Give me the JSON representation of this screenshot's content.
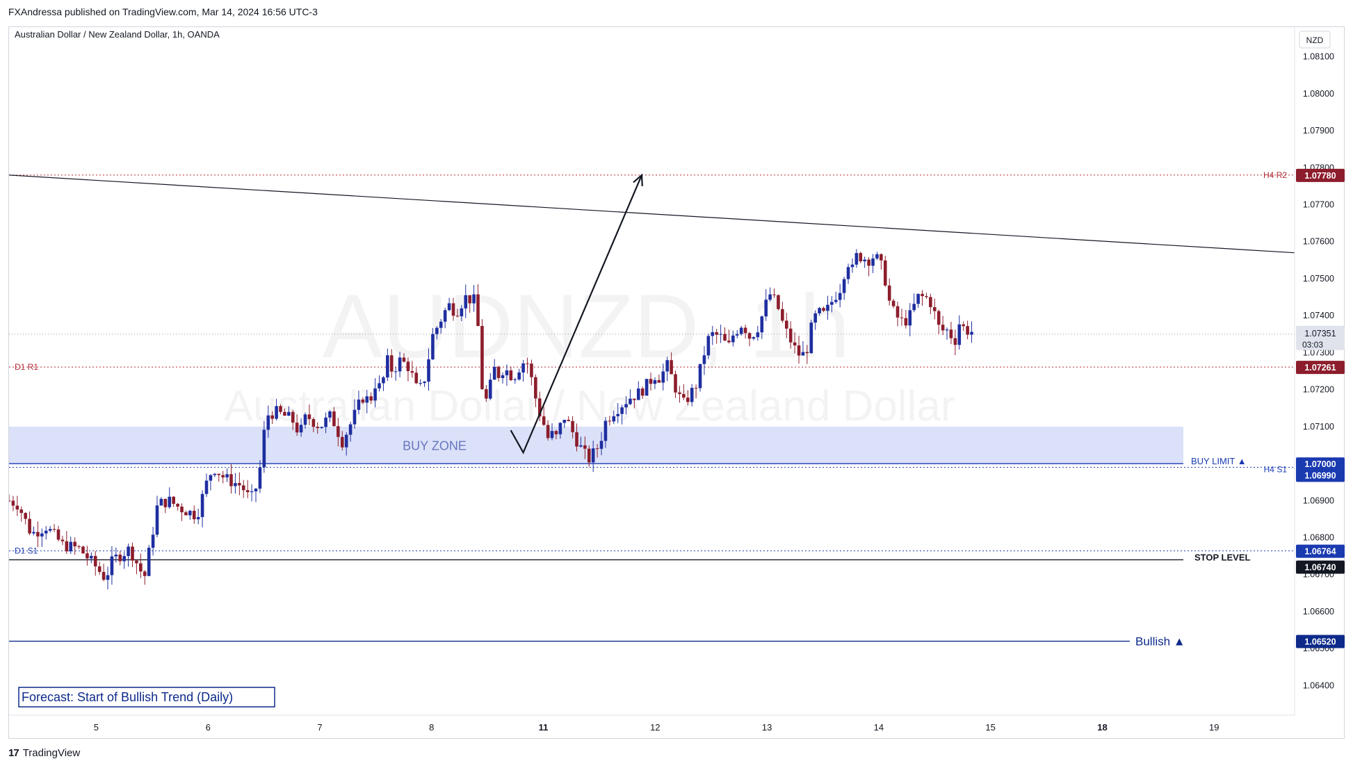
{
  "header": {
    "publish_line": "FXAndressa published on TradingView.com, Mar 14, 2024 16:56 UTC-3"
  },
  "footer": {
    "brand": "TradingView"
  },
  "chart_data": {
    "type": "candlestick",
    "symbol_line": "Australian Dollar / New Zealand Dollar, 1h, OANDA",
    "watermark_symbol": "AUDNZD, 1h",
    "watermark_name": "Australian Dollar / New Zealand Dollar",
    "currency": "NZD",
    "ylim": [
      1.0632,
      1.0818
    ],
    "y_ticks": [
      "1.08100",
      "1.08000",
      "1.07900",
      "1.07800",
      "1.07700",
      "1.07600",
      "1.07500",
      "1.07400",
      "1.07300",
      "1.07200",
      "1.07100",
      "1.07000",
      "1.06900",
      "1.06800",
      "1.06700",
      "1.06600",
      "1.06500",
      "1.06400"
    ],
    "x_ticks": [
      {
        "label": "5",
        "x": 5,
        "bold": false
      },
      {
        "label": "6",
        "x": 6,
        "bold": false
      },
      {
        "label": "7",
        "x": 7,
        "bold": false
      },
      {
        "label": "8",
        "x": 8,
        "bold": false
      },
      {
        "label": "11",
        "x": 9,
        "bold": true
      },
      {
        "label": "12",
        "x": 10,
        "bold": false
      },
      {
        "label": "13",
        "x": 11,
        "bold": false
      },
      {
        "label": "14",
        "x": 12,
        "bold": false
      },
      {
        "label": "15",
        "x": 13,
        "bold": false
      },
      {
        "label": "18",
        "x": 14,
        "bold": true
      },
      {
        "label": "19",
        "x": 15,
        "bold": false
      }
    ],
    "xlim": [
      4.22,
      15.72
    ],
    "colors": {
      "up": "#1e2ea0",
      "down": "#8c1d2c",
      "buy_zone": "#dbe1f8",
      "zone_label": "#6676bf",
      "bluebox": "#1a3ab0",
      "navy": "#0d2a8a"
    },
    "candle_anchors": [
      [
        4.22,
        1.069
      ],
      [
        4.3,
        1.0689
      ],
      [
        4.42,
        1.0681
      ],
      [
        4.55,
        1.0683
      ],
      [
        4.7,
        1.0678
      ],
      [
        4.85,
        1.0677
      ],
      [
        5.0,
        1.0672
      ],
      [
        5.08,
        1.0669
      ],
      [
        5.15,
        1.0674
      ],
      [
        5.3,
        1.0677
      ],
      [
        5.43,
        1.0669
      ],
      [
        5.55,
        1.0689
      ],
      [
        5.65,
        1.069
      ],
      [
        5.75,
        1.0688
      ],
      [
        5.9,
        1.0686
      ],
      [
        6.0,
        1.0696
      ],
      [
        6.05,
        1.0699
      ],
      [
        6.15,
        1.0696
      ],
      [
        6.3,
        1.0694
      ],
      [
        6.38,
        1.069
      ],
      [
        6.45,
        1.0695
      ],
      [
        6.52,
        1.0713
      ],
      [
        6.6,
        1.0714
      ],
      [
        6.75,
        1.0712
      ],
      [
        6.82,
        1.0708
      ],
      [
        6.88,
        1.0713
      ],
      [
        7.0,
        1.071
      ],
      [
        7.1,
        1.0713
      ],
      [
        7.2,
        1.0706
      ],
      [
        7.28,
        1.0711
      ],
      [
        7.38,
        1.0718
      ],
      [
        7.45,
        1.0717
      ],
      [
        7.5,
        1.0722
      ],
      [
        7.55,
        1.072
      ],
      [
        7.6,
        1.0728
      ],
      [
        7.65,
        1.0725
      ],
      [
        7.72,
        1.0728
      ],
      [
        7.8,
        1.0726
      ],
      [
        7.88,
        1.0719
      ],
      [
        7.95,
        1.0724
      ],
      [
        8.0,
        1.0734
      ],
      [
        8.05,
        1.0737
      ],
      [
        8.1,
        1.074
      ],
      [
        8.15,
        1.0743
      ],
      [
        8.22,
        1.0741
      ],
      [
        8.3,
        1.0745
      ],
      [
        8.38,
        1.0744
      ],
      [
        8.42,
        1.0736
      ],
      [
        8.45,
        1.0721
      ],
      [
        8.5,
        1.0716
      ],
      [
        8.55,
        1.0726
      ],
      [
        8.6,
        1.0724
      ],
      [
        8.65,
        1.0726
      ],
      [
        8.7,
        1.0724
      ],
      [
        8.75,
        1.0724
      ],
      [
        8.8,
        1.0727
      ],
      [
        8.85,
        1.0728
      ],
      [
        8.9,
        1.0722
      ],
      [
        8.95,
        1.0715
      ],
      [
        9.0,
        1.0711
      ],
      [
        9.05,
        1.0706
      ],
      [
        9.08,
        1.0708
      ],
      [
        9.12,
        1.0707
      ],
      [
        9.18,
        1.0713
      ],
      [
        9.22,
        1.0711
      ],
      [
        9.27,
        1.0708
      ],
      [
        9.32,
        1.0705
      ],
      [
        9.38,
        1.0702
      ],
      [
        9.42,
        1.0701
      ],
      [
        9.45,
        1.0703
      ],
      [
        9.5,
        1.0705
      ],
      [
        9.55,
        1.0711
      ],
      [
        9.62,
        1.0714
      ],
      [
        9.7,
        1.0716
      ],
      [
        9.78,
        1.0718
      ],
      [
        9.85,
        1.0719
      ],
      [
        9.92,
        1.0721
      ],
      [
        10.0,
        1.0724
      ],
      [
        10.05,
        1.0723
      ],
      [
        10.1,
        1.0727
      ],
      [
        10.14,
        1.0724
      ],
      [
        10.2,
        1.0719
      ],
      [
        10.25,
        1.0716
      ],
      [
        10.32,
        1.0719
      ],
      [
        10.38,
        1.0722
      ],
      [
        10.42,
        1.0728
      ],
      [
        10.48,
        1.0734
      ],
      [
        10.52,
        1.0735
      ],
      [
        10.6,
        1.0734
      ],
      [
        10.65,
        1.0731
      ],
      [
        10.7,
        1.0735
      ],
      [
        10.78,
        1.0738
      ],
      [
        10.85,
        1.0734
      ],
      [
        10.92,
        1.0737
      ],
      [
        10.97,
        1.0741
      ],
      [
        11.02,
        1.0746
      ],
      [
        11.05,
        1.0745
      ],
      [
        11.1,
        1.0742
      ],
      [
        11.15,
        1.0737
      ],
      [
        11.2,
        1.0734
      ],
      [
        11.25,
        1.0731
      ],
      [
        11.3,
        1.0729
      ],
      [
        11.35,
        1.073
      ],
      [
        11.4,
        1.0737
      ],
      [
        11.45,
        1.0741
      ],
      [
        11.5,
        1.074
      ],
      [
        11.55,
        1.0742
      ],
      [
        11.6,
        1.0745
      ],
      [
        11.65,
        1.0747
      ],
      [
        11.72,
        1.0755
      ],
      [
        11.76,
        1.0752
      ],
      [
        11.8,
        1.0756
      ],
      [
        11.85,
        1.0756
      ],
      [
        11.9,
        1.0755
      ],
      [
        11.95,
        1.0756
      ],
      [
        12.0,
        1.0755
      ],
      [
        12.05,
        1.0751
      ],
      [
        12.1,
        1.0743
      ],
      [
        12.15,
        1.074
      ],
      [
        12.22,
        1.0738
      ],
      [
        12.28,
        1.074
      ],
      [
        12.35,
        1.0745
      ],
      [
        12.42,
        1.0745
      ],
      [
        12.48,
        1.0743
      ],
      [
        12.52,
        1.0738
      ],
      [
        12.55,
        1.0736
      ],
      [
        12.62,
        1.0736
      ],
      [
        12.68,
        1.0733
      ],
      [
        12.72,
        1.0738
      ],
      [
        12.78,
        1.0736
      ],
      [
        12.82,
        1.0736
      ],
      [
        12.86,
        1.0735
      ]
    ],
    "buy_zone": {
      "low": 1.07,
      "high": 1.071,
      "label": "BUY ZONE"
    },
    "trendline": {
      "x1": 4.22,
      "y1": 1.0778,
      "x2": 15.72,
      "y2": 1.0757
    },
    "forecast_path": [
      [
        8.82,
        1.0703
      ],
      [
        9.88,
        1.0778
      ]
    ],
    "levels": [
      {
        "value": 1.0778,
        "style": "dotted",
        "color": "#b22833",
        "name": "H4 R2",
        "label": "1.07780",
        "box": "#8c1d2c"
      },
      {
        "value": 1.07261,
        "style": "dotted",
        "color": "#b22833",
        "name": "D1 R1",
        "label": "1.07261",
        "box": "#8c1d2c"
      },
      {
        "value": 1.07,
        "style": "solid",
        "color": "#1a3ab0",
        "name": "BUY LIMIT ▲",
        "label": "1.07000",
        "box": "#1a3ab0"
      },
      {
        "value": 1.0699,
        "style": "dotted",
        "color": "#1a3ab0",
        "name": "H4 S1",
        "label": "1.06990",
        "box": "#1a3ab0"
      },
      {
        "value": 1.06764,
        "style": "dotted",
        "color": "#1a3ab0",
        "name": "D1 S1",
        "label": "1.06764",
        "box": "#1a3ab0"
      },
      {
        "value": 1.0674,
        "style": "solid",
        "color": "#131722",
        "name": "STOP LEVEL",
        "label": "1.06740",
        "box": "#131722"
      },
      {
        "value": 1.0652,
        "style": "solid",
        "color": "#0d2a8a",
        "name": "Bullish ▲",
        "label": "1.06520",
        "box": "#0d2a8a"
      }
    ],
    "last_price": {
      "value": 1.0735,
      "label": "1.07351",
      "countdown": "03:03"
    },
    "forecast_note": "Forecast: Start of Bullish Trend (Daily)"
  }
}
